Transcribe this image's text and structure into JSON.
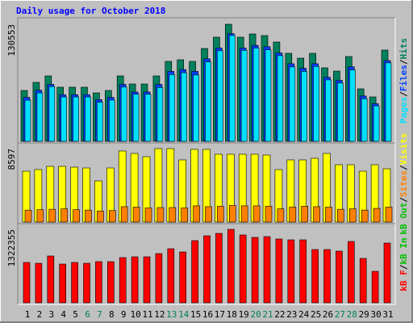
{
  "legend_separator": "/",
  "chart_data": [
    {
      "type": "bar",
      "title": "Daily usage for October 2018",
      "ylim": [
        0,
        135060
      ],
      "yticks": [
        130553
      ],
      "legend": [
        {
          "name": "Pages",
          "color": "#00e0ff"
        },
        {
          "name": "Files",
          "color": "#0040ff"
        },
        {
          "name": "Hits",
          "color": "#00805c"
        }
      ],
      "series": [
        {
          "color": "#00805c",
          "values": [
            56725,
            65730,
            72930,
            60325,
            60325,
            60325,
            54020,
            56725,
            72930,
            63925,
            63925,
            72930,
            89135,
            90935,
            89135,
            103540,
            116145,
            130553,
            116145,
            119750,
            117950,
            110745,
            98140,
            92735,
            98140,
            81935,
            78330,
            94540,
            58525,
            49520,
            101740
          ]
        },
        {
          "color": "#0040ff",
          "values": [
            49000,
            57000,
            63500,
            52000,
            52000,
            52000,
            46500,
            49000,
            63500,
            55000,
            55000,
            63500,
            78000,
            80000,
            78000,
            92000,
            104000,
            120000,
            104000,
            107000,
            105500,
            98500,
            86500,
            81500,
            86500,
            71500,
            68000,
            83000,
            50500,
            42000,
            90000
          ]
        },
        {
          "color": "#00e0ff",
          "values": [
            45800,
            54000,
            61000,
            49500,
            49500,
            49500,
            43500,
            46000,
            60500,
            52500,
            52500,
            60000,
            74500,
            76500,
            74000,
            88500,
            101000,
            118000,
            101500,
            104000,
            102000,
            95500,
            83000,
            78000,
            83500,
            68500,
            65000,
            79500,
            47500,
            39500,
            87500
          ]
        }
      ]
    },
    {
      "type": "bar",
      "ylim": [
        0,
        8977
      ],
      "yticks": [
        8597
      ],
      "legend": [
        {
          "name": "kB Out",
          "color": "#00c000"
        },
        {
          "name": "Sites",
          "color": "#ff8000"
        },
        {
          "name": "Visits",
          "color": "#ffff00"
        }
      ],
      "series": [
        {
          "color": "#ffff00",
          "values": [
            5953,
            6142,
            6520,
            6520,
            6426,
            6331,
            4819,
            6331,
            8316,
            8032,
            7654,
            8597,
            8597,
            7276,
            8505,
            8505,
            7938,
            7938,
            7938,
            7938,
            7843,
            6142,
            7276,
            7276,
            7465,
            8032,
            6709,
            6709,
            5953,
            6709,
            6237
          ]
        },
        {
          "color": "#ff8000",
          "values": [
            1400,
            1450,
            1500,
            1550,
            1450,
            1400,
            1300,
            1350,
            1800,
            1750,
            1650,
            1700,
            1700,
            1650,
            1900,
            1800,
            1850,
            1950,
            1900,
            1900,
            1850,
            1550,
            1750,
            1850,
            1800,
            1750,
            1500,
            1550,
            1400,
            1600,
            1750
          ]
        }
      ]
    },
    {
      "type": "bar",
      "ylim": [
        0,
        1380445
      ],
      "yticks": [
        1322355
      ],
      "legend": [
        {
          "name": "kB F",
          "color": "#ff0000"
        },
        {
          "name": "kB In",
          "color": "#00c000"
        }
      ],
      "categories": [
        "1",
        "2",
        "3",
        "4",
        "5",
        "6",
        "7",
        "8",
        "9",
        "10",
        "11",
        "12",
        "13",
        "14",
        "15",
        "16",
        "17",
        "18",
        "19",
        "20",
        "21",
        "22",
        "23",
        "24",
        "25",
        "26",
        "27",
        "28",
        "29",
        "30",
        "31"
      ],
      "label_colors": [
        "#000000",
        "#000000",
        "#000000",
        "#000000",
        "#000000",
        "#00805c",
        "#00805c",
        "#000000",
        "#000000",
        "#000000",
        "#000000",
        "#000000",
        "#00805c",
        "#00805c",
        "#000000",
        "#000000",
        "#000000",
        "#000000",
        "#000000",
        "#00805c",
        "#00805c",
        "#000000",
        "#000000",
        "#000000",
        "#000000",
        "#000000",
        "#00805c",
        "#00805c",
        "#000000",
        "#000000",
        "#000000"
      ],
      "series": [
        {
          "color": "#ff0000",
          "values": [
            726550,
            712019,
            842798,
            697488,
            726550,
            712019,
            741081,
            741081,
            813736,
            828267,
            828267,
            886391,
            973577,
            915453,
            1118887,
            1206073,
            1249666,
            1322355,
            1220604,
            1177011,
            1191542,
            1147949,
            1133418,
            1133418,
            959046,
            959046,
            929984,
            1104356,
            799205,
            566709,
            1075294
          ]
        }
      ]
    }
  ]
}
